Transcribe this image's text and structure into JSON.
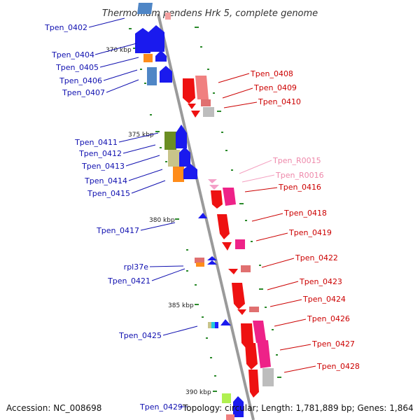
{
  "title": "Thermofilum pendens Hrk 5, complete genome",
  "colors": {
    "backbone": "#8c8c8c",
    "left_label": "#1010b0",
    "right_label": "#cc0000",
    "rna_label": "#ee88aa",
    "tick": "#2b8a2b"
  },
  "ticks": [
    "370 kbp",
    "375 kbp",
    "380 kbp",
    "385 kbp",
    "390 kbp"
  ],
  "left_genes": [
    "Tpen_0402",
    "Tpen_0404",
    "Tpen_0405",
    "Tpen_0406",
    "Tpen_0407",
    "Tpen_0411",
    "Tpen_0412",
    "Tpen_0413",
    "Tpen_0414",
    "Tpen_0415",
    "Tpen_0417",
    "rpl37e",
    "Tpen_0421",
    "Tpen_0425",
    "Tpen_0429"
  ],
  "right_genes": [
    "Tpen_0408",
    "Tpen_0409",
    "Tpen_0410",
    "Tpen_R0015",
    "Tpen_R0016",
    "Tpen_0416",
    "Tpen_0418",
    "Tpen_0419",
    "Tpen_0422",
    "Tpen_0423",
    "Tpen_0424",
    "Tpen_0426",
    "Tpen_0427",
    "Tpen_0428"
  ],
  "footer": {
    "accession": "Accession: NC_008698",
    "summary": "Topology: circular; Length: 1,781,889 bp; Genes: 1,864"
  }
}
